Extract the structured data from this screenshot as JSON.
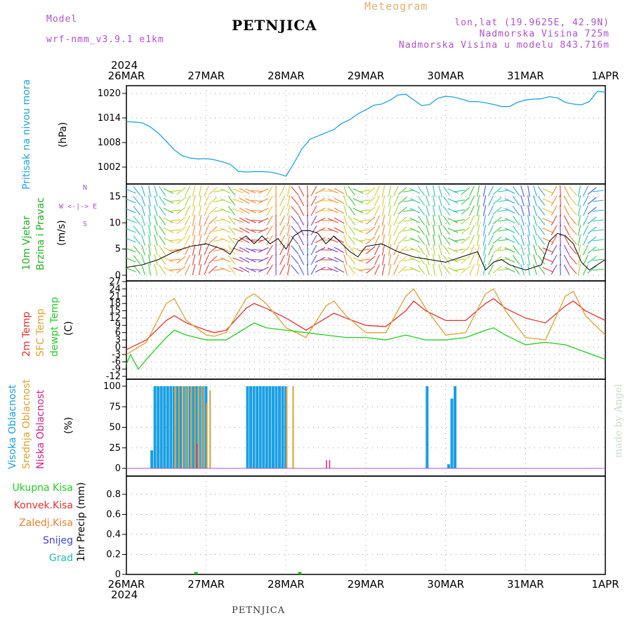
{
  "header": {
    "model_label": "Model",
    "model_name": "wrf-nmm_v3.9.1  e1km",
    "title": "PETNJICA",
    "meteogram": "Meteogram",
    "lonlat": "lon,lat (19.9625E, 42.9N)",
    "elevation": "Nadmorska Visina 725m",
    "model_elevation": "Nadmorska Visina u modelu 843.716m",
    "year_top": "2024",
    "year_bottom": "2024",
    "footer_title": "PETNJICA",
    "watermark": "made by Angel"
  },
  "colors": {
    "pressure": "#1fa3e0",
    "temp2m": "#e8302e",
    "sfc": "#e0a030",
    "dewpt": "#22cc22",
    "high_cloud": "#1a9fe3",
    "mid_cloud": "#e0a030",
    "low_cloud": "#d0208a",
    "purple": "#b050d0",
    "wind_green": "#20b020"
  },
  "chart_data": [
    {
      "type": "line",
      "id": "pressure",
      "ylabel_lines": [
        "Pritisak na nivou mora",
        "(hPa)"
      ],
      "x_dates": [
        "26MAR",
        "27MAR",
        "28MAR",
        "29MAR",
        "30MAR",
        "31MAR",
        "1APR"
      ],
      "ylim": [
        996,
        1022
      ],
      "yticks": [
        "1002",
        "1008",
        "1014",
        "1020"
      ],
      "series": [
        {
          "x": [
            0,
            0.1,
            0.2,
            0.3,
            0.4,
            0.5,
            0.6,
            0.7,
            0.8,
            0.9,
            1.0,
            1.1,
            1.2,
            1.3,
            1.4,
            1.5,
            1.6,
            1.7,
            1.8,
            1.9,
            2.0,
            2.1,
            2.2,
            2.3,
            2.4,
            2.5,
            2.6,
            2.7,
            2.8,
            2.9,
            3.0,
            3.1,
            3.2,
            3.3,
            3.4,
            3.5,
            3.6,
            3.7,
            3.8,
            3.9,
            4.0,
            4.1,
            4.2,
            4.3,
            4.4,
            4.5,
            4.6,
            4.7,
            4.8,
            4.9,
            5.0,
            5.1,
            5.2,
            5.3,
            5.4,
            5.5,
            5.6,
            5.7,
            5.8,
            5.9,
            6.0
          ],
          "y": [
            1013.1,
            1013.0,
            1012.8,
            1011.8,
            1010.3,
            1008.3,
            1006.2,
            1004.8,
            1004.2,
            1004.0,
            1004.1,
            1003.8,
            1003.3,
            1002.7,
            1001.0,
            1000.8,
            1000.9,
            1000.9,
            1000.8,
            1000.4,
            999.8,
            1003.0,
            1006.5,
            1008.8,
            1009.6,
            1010.4,
            1011.2,
            1012.7,
            1013.6,
            1015.0,
            1016.0,
            1017.1,
            1017.4,
            1018.3,
            1019.6,
            1019.8,
            1018.4,
            1017.0,
            1017.3,
            1018.8,
            1019.3,
            1019.1,
            1018.6,
            1018.0,
            1018.0,
            1017.7,
            1017.3,
            1016.8,
            1016.8,
            1017.8,
            1018.4,
            1018.6,
            1018.7,
            1019.2,
            1018.9,
            1017.8,
            1017.4,
            1017.2,
            1018.0,
            1020.5,
            1020.3
          ]
        }
      ]
    },
    {
      "type": "line",
      "id": "wind",
      "ylabel_lines": [
        "10m Vjetar",
        "Brzina i Pravac",
        "(m/s)"
      ],
      "compass": [
        "N",
        "W <-|-> E",
        "S"
      ],
      "ylim": [
        0,
        18
      ],
      "yticks": [
        "0",
        "5",
        "10",
        "15"
      ],
      "series": [
        {
          "name": "",
          "x": [
            0,
            0.2,
            0.4,
            0.6,
            0.8,
            1.0,
            1.2,
            1.3,
            1.4,
            1.5,
            1.6,
            1.7,
            1.8,
            1.9,
            2.0,
            2.1,
            2.2,
            2.3,
            2.4,
            2.5,
            2.6,
            2.7,
            2.8,
            2.9,
            3.0,
            3.2,
            3.4,
            3.6,
            3.8,
            4.0,
            4.2,
            4.4,
            4.5,
            4.6,
            4.7,
            4.8,
            4.9,
            5.0,
            5.2,
            5.3,
            5.4,
            5.5,
            5.6,
            5.7,
            5.8,
            5.9,
            6.0
          ],
          "y": [
            1.5,
            2.0,
            3.0,
            4.5,
            5.5,
            6.0,
            5.0,
            4.0,
            6.5,
            7.5,
            6.0,
            7.5,
            6.0,
            7.0,
            5.0,
            7.5,
            8.5,
            8.5,
            8.0,
            6.0,
            7.5,
            6.0,
            4.5,
            3.5,
            5.5,
            6.0,
            4.5,
            3.5,
            3.0,
            2.5,
            3.5,
            4.5,
            1.0,
            2.5,
            3.0,
            2.0,
            1.5,
            1.0,
            2.0,
            6.5,
            8.0,
            7.5,
            6.0,
            2.5,
            1.0,
            2.0,
            3.0
          ]
        }
      ]
    },
    {
      "type": "line",
      "id": "temperature",
      "ylabel_lines": [
        "2m Temp",
        "SFC Temp",
        "dewpt Temp",
        "(C)"
      ],
      "ylim": [
        -12,
        27
      ],
      "yticks": [
        "-12",
        "-9",
        "-6",
        "-3",
        "0",
        "3",
        "6",
        "9",
        "12",
        "15",
        "18",
        "21",
        "24",
        "27"
      ],
      "series": [
        {
          "name": "2m Temp",
          "x": [
            0,
            0.25,
            0.5,
            0.6,
            0.75,
            1.0,
            1.1,
            1.25,
            1.5,
            1.6,
            1.75,
            2.0,
            2.25,
            2.5,
            2.6,
            2.75,
            3.0,
            3.25,
            3.5,
            3.6,
            3.75,
            4.0,
            4.25,
            4.5,
            4.6,
            4.75,
            5.0,
            5.25,
            5.5,
            5.6,
            5.75,
            6.0
          ],
          "y": [
            -1,
            3,
            11,
            13,
            10,
            7,
            6,
            7,
            16,
            18,
            16,
            12,
            7,
            12,
            14,
            12,
            9,
            8.5,
            15,
            19,
            15,
            11,
            11,
            18,
            20,
            16,
            12,
            10,
            17,
            19,
            15,
            11
          ]
        },
        {
          "name": "SFC Temp",
          "x": [
            0,
            0.25,
            0.5,
            0.6,
            0.75,
            1.0,
            1.1,
            1.25,
            1.5,
            1.6,
            1.75,
            2.0,
            2.25,
            2.5,
            2.6,
            2.75,
            3.0,
            3.25,
            3.5,
            3.6,
            3.75,
            4.0,
            4.25,
            4.5,
            4.6,
            4.75,
            5.0,
            5.25,
            5.5,
            5.6,
            5.75,
            6.0
          ],
          "y": [
            -3,
            2,
            18,
            20,
            11,
            5,
            4.5,
            6,
            20,
            22,
            18,
            8,
            4,
            17,
            19,
            13,
            6,
            6,
            21,
            24,
            16,
            5,
            6,
            22,
            24,
            15,
            4,
            3,
            21,
            23,
            13,
            5
          ]
        },
        {
          "name": "dewpt Temp",
          "x": [
            0,
            0.05,
            0.15,
            0.25,
            0.5,
            0.6,
            0.75,
            1.0,
            1.25,
            1.5,
            1.6,
            1.75,
            2.0,
            2.25,
            2.5,
            2.75,
            3.0,
            3.25,
            3.5,
            3.75,
            4.0,
            4.25,
            4.5,
            4.6,
            4.75,
            5.0,
            5.25,
            5.5,
            5.75,
            6.0
          ],
          "y": [
            -7,
            -3,
            -9,
            -5,
            4,
            7,
            5,
            3,
            3,
            8,
            10,
            8,
            7,
            6,
            5,
            4,
            4,
            3,
            5,
            3,
            3,
            4,
            7,
            8,
            5,
            1,
            2,
            1,
            -2,
            -5
          ]
        }
      ]
    },
    {
      "type": "bar",
      "id": "clouds",
      "ylabel_lines": [
        "Visoka Oblacnost",
        "Srednja Oblacnost",
        "Niska Oblacnost",
        "(%)"
      ],
      "ylim": [
        0,
        100
      ],
      "yticks": [
        "0",
        "25",
        "50",
        "75",
        "100"
      ],
      "series": [
        {
          "name": "Visoka Oblacnost",
          "x": [
            0.3,
            0.34,
            0.38,
            0.42,
            0.46,
            0.5,
            0.54,
            0.58,
            0.62,
            0.66,
            0.7,
            0.74,
            0.78,
            0.82,
            0.86,
            0.9,
            0.94,
            0.98,
            1.5,
            1.54,
            1.58,
            1.62,
            1.66,
            1.7,
            1.74,
            1.78,
            1.82,
            1.86,
            1.9,
            1.94,
            1.98,
            3.75,
            4.02,
            4.06,
            4.1
          ],
          "y": [
            22,
            100,
            100,
            100,
            100,
            100,
            100,
            100,
            100,
            100,
            100,
            100,
            100,
            100,
            100,
            100,
            100,
            100,
            100,
            100,
            100,
            100,
            100,
            100,
            100,
            100,
            100,
            100,
            100,
            100,
            100,
            100,
            5,
            85,
            100
          ]
        },
        {
          "name": "Srednja Oblacnost",
          "x": [
            0.6,
            0.65,
            0.7,
            0.75,
            0.8,
            0.85,
            0.9,
            0.95,
            1.0,
            1.04,
            2.0,
            2.08
          ],
          "y": [
            100,
            100,
            100,
            100,
            100,
            100,
            100,
            100,
            80,
            95,
            100,
            100
          ]
        },
        {
          "name": "Niska Oblacnost",
          "x": [
            0.88,
            2.5,
            2.54
          ],
          "y": [
            30,
            10,
            10
          ]
        }
      ]
    },
    {
      "type": "bar",
      "id": "precip",
      "ylabel_lines": [
        "1hr Precip (mm)"
      ],
      "legend": [
        "Ukupna Kisa",
        "Konvek.Kisa",
        "Zaledj.Kisa",
        "Snijeg",
        "Grad"
      ],
      "legend_colors": [
        "#22cc22",
        "#e8302e",
        "#f08030",
        "#4040e0",
        "#20c0b0"
      ],
      "ylim": [
        0,
        1.0
      ],
      "yticks": [
        "0",
        "0.2",
        "0.4",
        "0.6",
        "0.8"
      ],
      "series": [
        {
          "name": "Ukupna Kisa",
          "x": [
            0.85,
            2.15
          ],
          "y": [
            0.01,
            0.01
          ]
        }
      ]
    }
  ]
}
